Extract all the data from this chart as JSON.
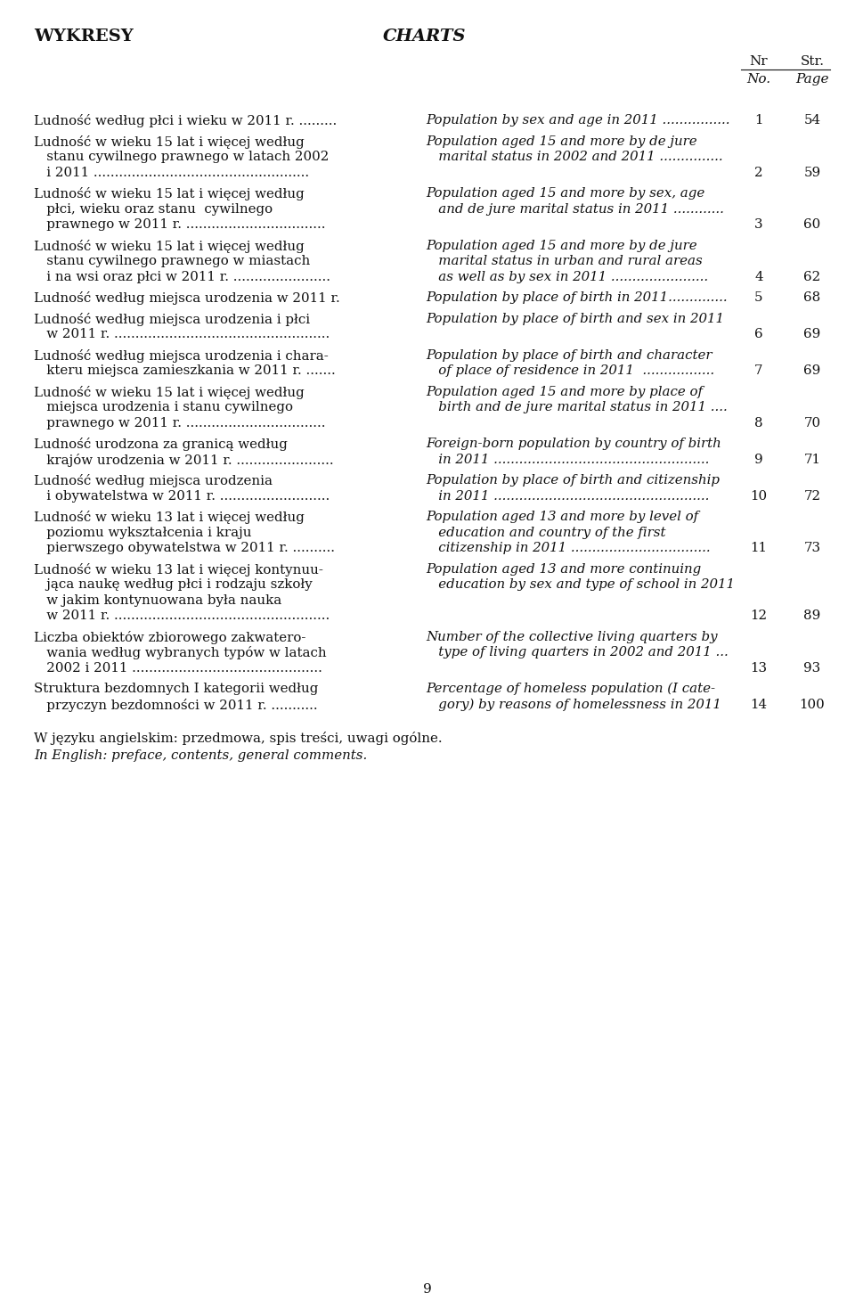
{
  "background_color": "#ffffff",
  "page_number": "9",
  "header_left": "WYKRESY",
  "header_right": "CHARTS",
  "col_header_nr": "Nr",
  "col_header_no": "No.",
  "col_header_str": "Str.",
  "col_header_page": "Page",
  "entries": [
    {
      "polish_lines": [
        "Ludność według płci i wieku w 2011 r. ........."
      ],
      "english_lines": [
        "Population by sex and age in 2011 ................"
      ],
      "nr": "1",
      "str": "54"
    },
    {
      "polish_lines": [
        "Ludność w wieku 15 lat i więcej według",
        "   stanu cywilnego prawnego w latach 2002",
        "   i 2011 ..................................................."
      ],
      "english_lines": [
        "Population aged 15 and more by de jure",
        "   marital status in 2002 and 2011 ..............."
      ],
      "nr": "2",
      "str": "59"
    },
    {
      "polish_lines": [
        "Ludność w wieku 15 lat i więcej według",
        "   płci, wieku oraz stanu  cywilnego",
        "   prawnego w 2011 r. ................................."
      ],
      "english_lines": [
        "Population aged 15 and more by sex, age",
        "   and de jure marital status in 2011 ............"
      ],
      "nr": "3",
      "str": "60"
    },
    {
      "polish_lines": [
        "Ludność w wieku 15 lat i więcej według",
        "   stanu cywilnego prawnego w miastach",
        "   i na wsi oraz płci w 2011 r. ......................."
      ],
      "english_lines": [
        "Population aged 15 and more by de jure",
        "   marital status in urban and rural areas",
        "   as well as by sex in 2011 ......................."
      ],
      "nr": "4",
      "str": "62"
    },
    {
      "polish_lines": [
        "Ludność według miejsca urodzenia w 2011 r."
      ],
      "english_lines": [
        "Population by place of birth in 2011.............."
      ],
      "nr": "5",
      "str": "68"
    },
    {
      "polish_lines": [
        "Ludność według miejsca urodzenia i płci",
        "   w 2011 r. ..................................................."
      ],
      "english_lines": [
        "Population by place of birth and sex in 2011"
      ],
      "nr": "6",
      "str": "69"
    },
    {
      "polish_lines": [
        "Ludność według miejsca urodzenia i chara-",
        "   kteru miejsca zamieszkania w 2011 r. ......."
      ],
      "english_lines": [
        "Population by place of birth and character",
        "   of place of residence in 2011  ................."
      ],
      "nr": "7",
      "str": "69"
    },
    {
      "polish_lines": [
        "Ludność w wieku 15 lat i więcej według",
        "   miejsca urodzenia i stanu cywilnego",
        "   prawnego w 2011 r. ................................."
      ],
      "english_lines": [
        "Population aged 15 and more by place of",
        "   birth and de jure marital status in 2011 ...."
      ],
      "nr": "8",
      "str": "70"
    },
    {
      "polish_lines": [
        "Ludność urodzona za granicą według",
        "   krajów urodzenia w 2011 r. ......................."
      ],
      "english_lines": [
        "Foreign-born population by country of birth",
        "   in 2011 ..................................................."
      ],
      "nr": "9",
      "str": "71"
    },
    {
      "polish_lines": [
        "Ludność według miejsca urodzenia",
        "   i obywatelstwa w 2011 r. .........................."
      ],
      "english_lines": [
        "Population by place of birth and citizenship",
        "   in 2011 ..................................................."
      ],
      "nr": "10",
      "str": "72"
    },
    {
      "polish_lines": [
        "Ludność w wieku 13 lat i więcej według",
        "   poziomu wykształcenia i kraju",
        "   pierwszego obywatelstwa w 2011 r. .........."
      ],
      "english_lines": [
        "Population aged 13 and more by level of",
        "   education and country of the first",
        "   citizenship in 2011 ................................."
      ],
      "nr": "11",
      "str": "73"
    },
    {
      "polish_lines": [
        "Ludność w wieku 13 lat i więcej kontynuu-",
        "   jąca naukę według płci i rodzaju szkoły",
        "   w jakim kontynuowana była nauka",
        "   w 2011 r. ..................................................."
      ],
      "english_lines": [
        "Population aged 13 and more continuing",
        "   education by sex and type of school in 2011"
      ],
      "nr": "12",
      "str": "89"
    },
    {
      "polish_lines": [
        "Liczba obiektów zbiorowego zakwatero-",
        "   wania według wybranych typów w latach",
        "   2002 i 2011 ............................................."
      ],
      "english_lines": [
        "Number of the collective living quarters by",
        "   type of living quarters in 2002 and 2011 ..."
      ],
      "nr": "13",
      "str": "93"
    },
    {
      "polish_lines": [
        "Struktura bezdomnych I kategorii według",
        "   przyczyn bezdomności w 2011 r. ..........."
      ],
      "english_lines": [
        "Percentage of homeless population (I cate-",
        "   gory) by reasons of homelessness in 2011"
      ],
      "nr": "14",
      "str": "100"
    }
  ],
  "footer_polish": "W języku angielskim: przedmowa, spis treści, uwagi ogólne.",
  "footer_english": "In English: preface, contents, general comments."
}
